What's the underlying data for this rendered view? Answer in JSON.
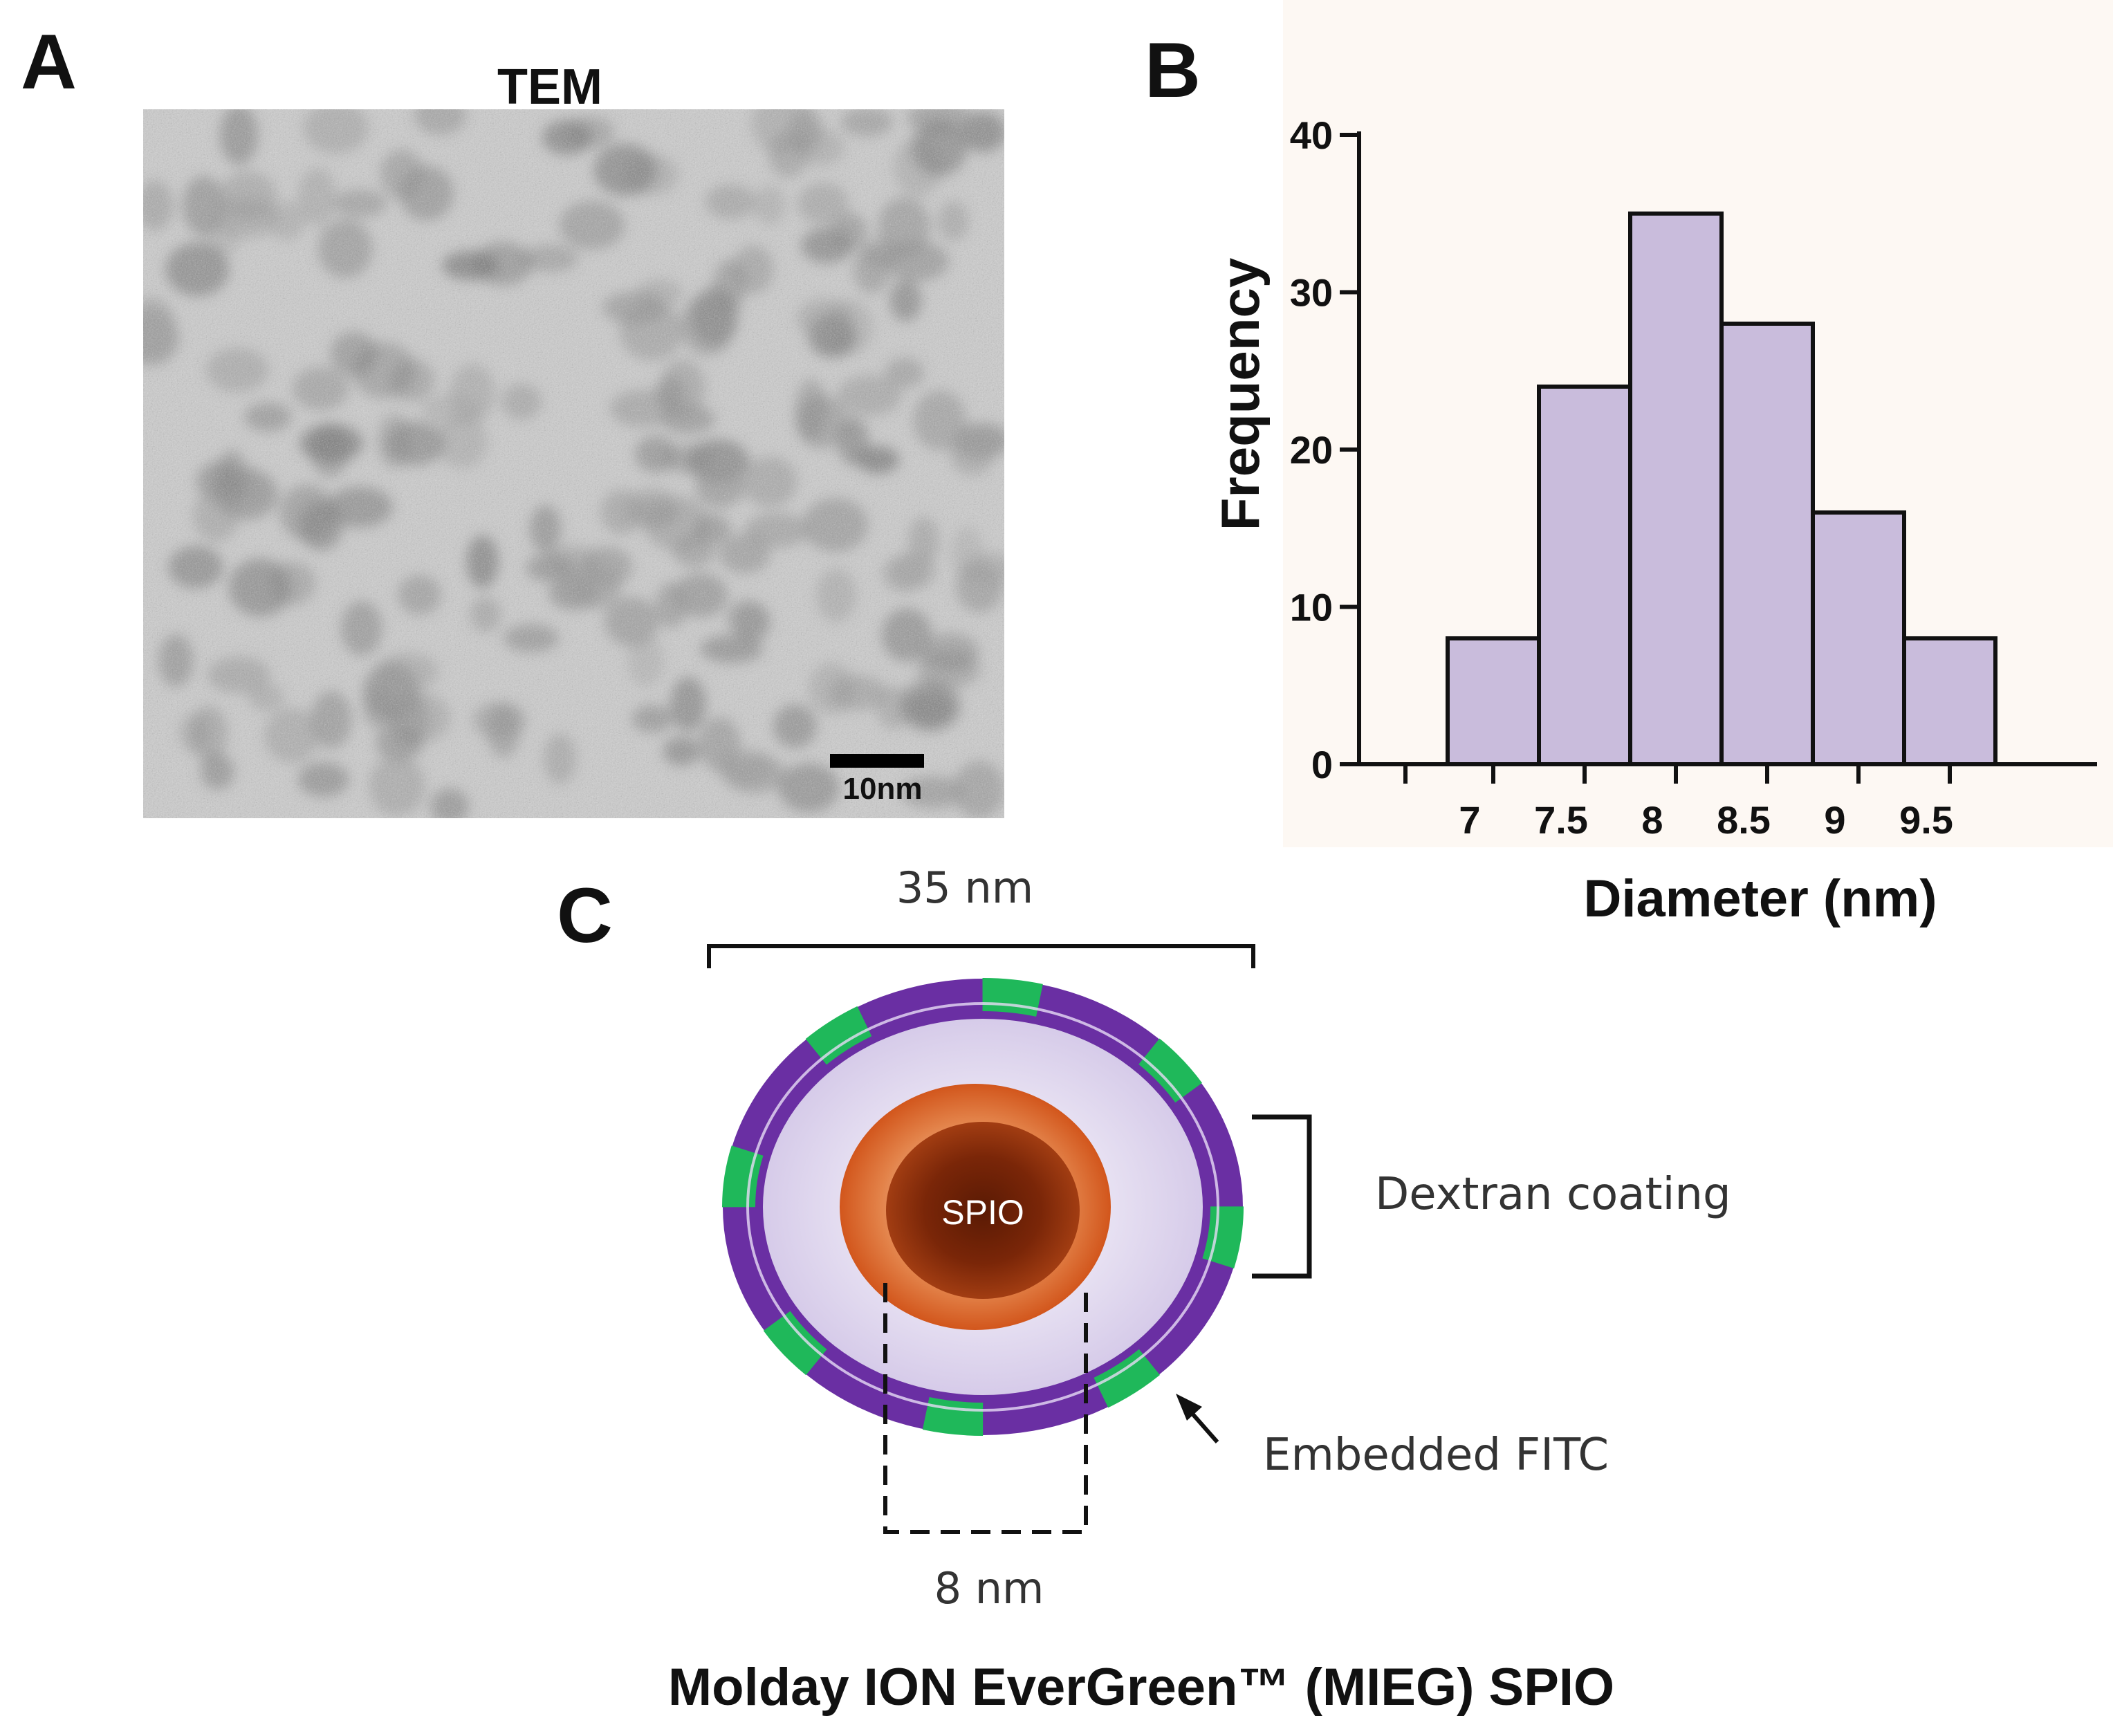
{
  "panels": {
    "a": {
      "letter": "A",
      "title": "TEM",
      "scale_bar_label": "10nm"
    },
    "b": {
      "letter": "B"
    },
    "c": {
      "letter": "C",
      "outer_diameter_label": "35 nm",
      "core_diameter_label": "8 nm",
      "coating_label": "Dextran coating",
      "fitc_label": "Embedded FITC",
      "core_label": "SPIO",
      "caption": "Molday ION EverGreen™ (MIEG) SPIO",
      "colors": {
        "shell": "#6a2fa3",
        "fitc": "#1fb85a",
        "dextran": "#d8cdea",
        "core_outer": "#d2561c",
        "core_inner": "#7a2608"
      }
    }
  },
  "chart_data": {
    "type": "bar",
    "title": "",
    "xlabel": "Diameter (nm)",
    "ylabel": "Frequency",
    "categories": [
      "7",
      "7.5",
      "8",
      "8.5",
      "9",
      "9.5"
    ],
    "values": [
      8,
      24,
      35,
      28,
      16,
      8
    ],
    "yticks": [
      "0",
      "10",
      "20",
      "30",
      "40"
    ],
    "ylim": [
      0,
      40
    ],
    "bar_color": "#c9bcdc",
    "grid": false
  }
}
